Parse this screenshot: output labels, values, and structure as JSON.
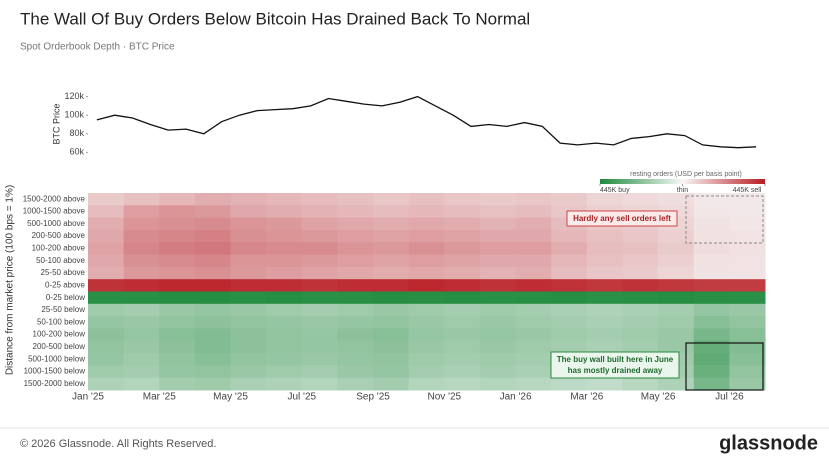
{
  "title": "The Wall Of Buy Orders Below Bitcoin Has Drained Back To Normal",
  "subtitle": "Spot Orderbook Depth · BTC Price",
  "footer": "© 2026 Glassnode. All Rights Reserved.",
  "watermark": "glassnode",
  "chart_data": [
    {
      "type": "line",
      "y_label": "BTC Price",
      "color": "#111111",
      "values": [
        95000,
        100000,
        97000,
        90000,
        84000,
        85000,
        80000,
        93000,
        100000,
        105000,
        106000,
        107000,
        110000,
        118000,
        115000,
        112000,
        110000,
        114000,
        120000,
        110000,
        100000,
        88000,
        90000,
        88000,
        92000,
        88000,
        70000,
        68000,
        70000,
        68000,
        75000,
        77000,
        80000,
        78000,
        68000,
        66000,
        65000,
        66000
      ],
      "ylim": [
        55000,
        125000
      ],
      "yticks": [
        {
          "value": 60000,
          "label": "60k"
        },
        {
          "value": 80000,
          "label": "80k"
        },
        {
          "value": 100000,
          "label": "100k"
        },
        {
          "value": 120000,
          "label": "120k"
        }
      ]
    },
    {
      "type": "heatmap",
      "y_label": "Distance from market price (100 bps = 1%)",
      "legend_title": "resting orders (USD per basis point)",
      "colorscale": [
        "#1e8a3c",
        "#f7f7f7",
        "#b81c22"
      ],
      "clim": [
        -445000,
        445000
      ],
      "cticks": [
        {
          "value": -445000,
          "label": "445K buy"
        },
        {
          "value": 0,
          "label": "thin"
        },
        {
          "value": 445000,
          "label": "445K sell"
        }
      ],
      "categories": [
        "Jan '25",
        null,
        "Mar '25",
        null,
        "May '25",
        null,
        "Jul '25",
        null,
        "Sep '25",
        null,
        "Nov '25",
        null,
        "Jan '26",
        null,
        "Mar '26",
        null,
        "May '26",
        null,
        "Jul '26"
      ],
      "annotations": [
        "Hardly any sell orders left",
        "The buy wall built here in June",
        "has mostly drained away"
      ],
      "series": [
        {
          "name": "1500-2000 above",
          "values": [
            90000,
            110000,
            130000,
            150000,
            140000,
            130000,
            120000,
            110000,
            100000,
            110000,
            100000,
            90000,
            100000,
            90000,
            70000,
            60000,
            50000,
            30000,
            30000
          ]
        },
        {
          "name": "1000-1500 above",
          "values": [
            120000,
            180000,
            200000,
            190000,
            160000,
            150000,
            140000,
            130000,
            120000,
            130000,
            120000,
            110000,
            120000,
            100000,
            80000,
            70000,
            60000,
            35000,
            30000
          ]
        },
        {
          "name": "500-1000 above",
          "values": [
            150000,
            200000,
            210000,
            220000,
            200000,
            190000,
            170000,
            160000,
            150000,
            160000,
            150000,
            140000,
            150000,
            120000,
            100000,
            90000,
            70000,
            40000,
            35000
          ]
        },
        {
          "name": "200-500 above",
          "values": [
            160000,
            220000,
            230000,
            240000,
            210000,
            200000,
            190000,
            180000,
            170000,
            180000,
            170000,
            160000,
            160000,
            130000,
            110000,
            100000,
            80000,
            45000,
            40000
          ]
        },
        {
          "name": "100-200 above",
          "values": [
            170000,
            230000,
            250000,
            260000,
            230000,
            220000,
            220000,
            200000,
            190000,
            210000,
            190000,
            180000,
            180000,
            150000,
            120000,
            110000,
            90000,
            50000,
            45000
          ]
        },
        {
          "name": "50-100 above",
          "values": [
            160000,
            210000,
            220000,
            230000,
            200000,
            200000,
            190000,
            180000,
            170000,
            180000,
            170000,
            160000,
            160000,
            130000,
            110000,
            100000,
            80000,
            45000,
            40000
          ]
        },
        {
          "name": "25-50 above",
          "values": [
            150000,
            190000,
            200000,
            210000,
            190000,
            180000,
            170000,
            160000,
            150000,
            160000,
            150000,
            140000,
            150000,
            120000,
            100000,
            90000,
            70000,
            40000,
            40000
          ]
        },
        {
          "name": "0-25 above",
          "values": [
            400000,
            410000,
            420000,
            420000,
            410000,
            410000,
            400000,
            410000,
            410000,
            420000,
            410000,
            400000,
            410000,
            400000,
            390000,
            400000,
            390000,
            380000,
            380000
          ]
        },
        {
          "name": "0-25 below",
          "values": [
            -420000,
            -425000,
            -430000,
            -430000,
            -425000,
            -430000,
            -420000,
            -425000,
            -430000,
            -425000,
            -430000,
            -420000,
            -425000,
            -430000,
            -420000,
            -425000,
            -430000,
            -425000,
            -420000
          ]
        },
        {
          "name": "25-50 below",
          "values": [
            -180000,
            -170000,
            -190000,
            -200000,
            -190000,
            -180000,
            -170000,
            -180000,
            -190000,
            -180000,
            -170000,
            -180000,
            -170000,
            -160000,
            -150000,
            -160000,
            -170000,
            -200000,
            -190000
          ]
        },
        {
          "name": "50-100 below",
          "values": [
            -200000,
            -190000,
            -210000,
            -220000,
            -210000,
            -200000,
            -190000,
            -200000,
            -210000,
            -190000,
            -180000,
            -190000,
            -180000,
            -170000,
            -160000,
            -170000,
            -180000,
            -230000,
            -210000
          ]
        },
        {
          "name": "100-200 below",
          "values": [
            -220000,
            -200000,
            -230000,
            -240000,
            -220000,
            -210000,
            -200000,
            -220000,
            -230000,
            -200000,
            -190000,
            -200000,
            -190000,
            -180000,
            -170000,
            -180000,
            -190000,
            -260000,
            -230000
          ]
        },
        {
          "name": "200-500 below",
          "values": [
            -210000,
            -190000,
            -220000,
            -240000,
            -220000,
            -210000,
            -200000,
            -210000,
            -220000,
            -190000,
            -180000,
            -190000,
            -180000,
            -170000,
            -160000,
            -170000,
            -190000,
            -300000,
            -240000
          ]
        },
        {
          "name": "500-1000 below",
          "values": [
            -200000,
            -180000,
            -210000,
            -230000,
            -210000,
            -200000,
            -190000,
            -200000,
            -210000,
            -180000,
            -170000,
            -180000,
            -170000,
            -160000,
            -150000,
            -170000,
            -180000,
            -310000,
            -230000
          ]
        },
        {
          "name": "1000-1500 below",
          "values": [
            -180000,
            -170000,
            -200000,
            -210000,
            -190000,
            -180000,
            -170000,
            -190000,
            -200000,
            -170000,
            -160000,
            -170000,
            -160000,
            -150000,
            -140000,
            -160000,
            -170000,
            -290000,
            -210000
          ]
        },
        {
          "name": "1500-2000 below",
          "values": [
            -150000,
            -140000,
            -170000,
            -180000,
            -160000,
            -150000,
            -140000,
            -160000,
            -170000,
            -140000,
            -130000,
            -140000,
            -130000,
            -120000,
            -110000,
            -130000,
            -150000,
            -260000,
            -190000
          ]
        }
      ]
    }
  ]
}
